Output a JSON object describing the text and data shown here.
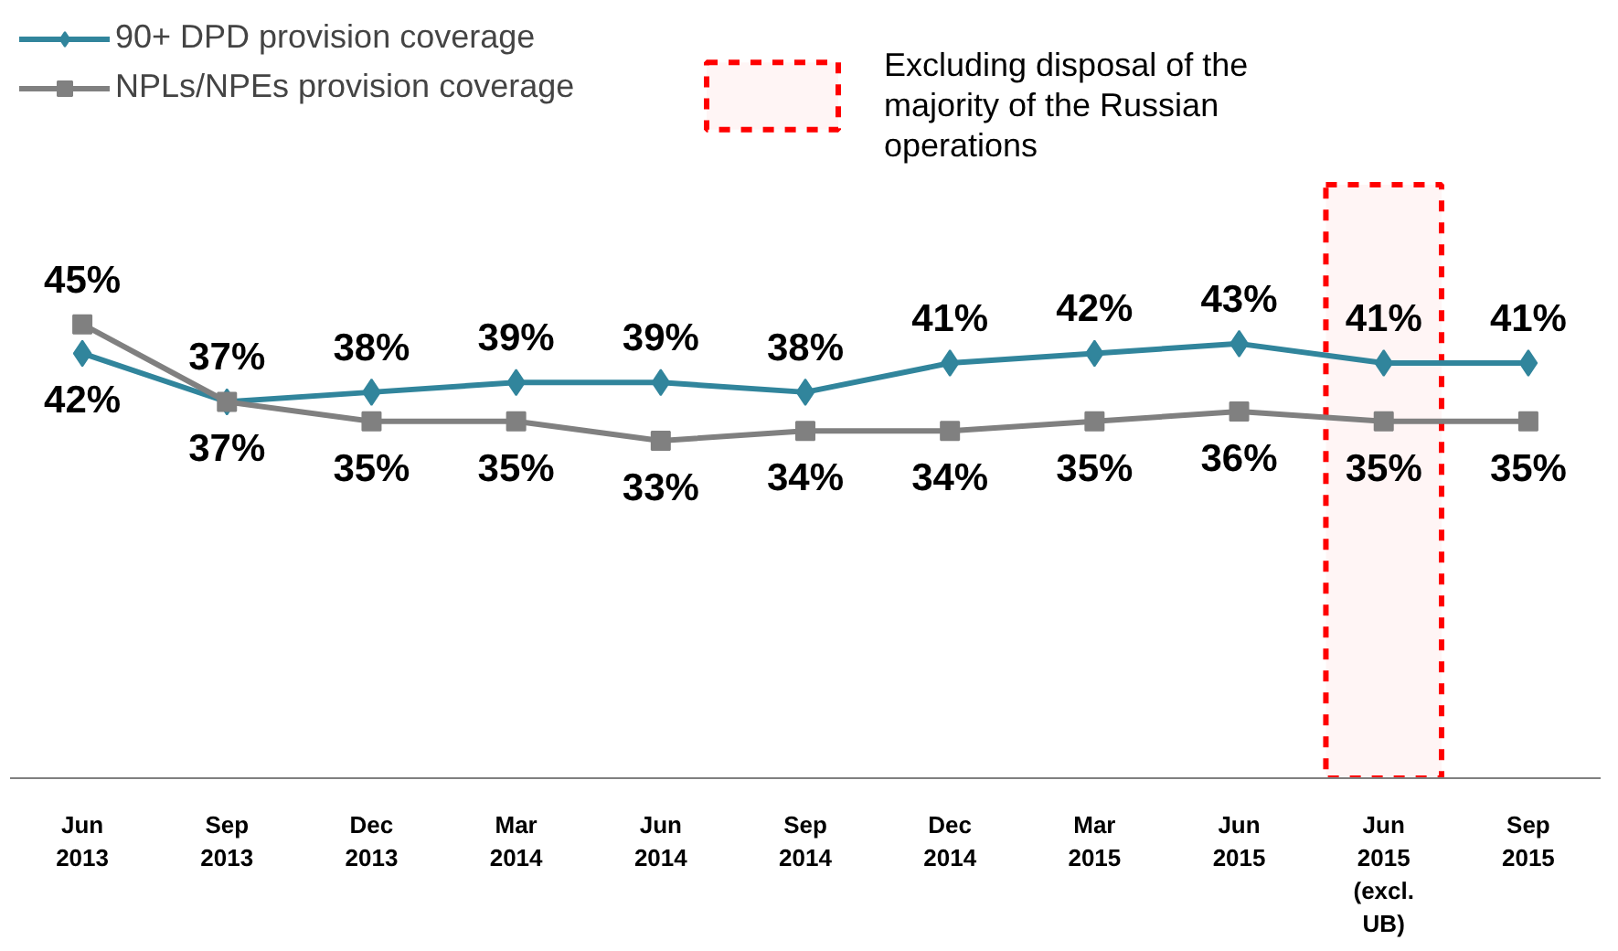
{
  "chart_data": {
    "type": "line",
    "categories": [
      "Jun 2013",
      "Sep 2013",
      "Dec 2013",
      "Mar 2014",
      "Jun 2014",
      "Sep 2014",
      "Dec 2014",
      "Mar 2015",
      "Jun 2015",
      "Jun 2015 (excl. UB)",
      "Sep 2015"
    ],
    "series": [
      {
        "name": "90+ DPD provision coverage",
        "color": "#31859c",
        "marker": "diamond",
        "values": [
          42,
          37,
          38,
          39,
          39,
          38,
          41,
          42,
          43,
          41,
          41
        ],
        "value_labels": [
          "42%",
          "37%",
          "38%",
          "39%",
          "39%",
          "38%",
          "41%",
          "42%",
          "43%",
          "41%",
          "41%"
        ]
      },
      {
        "name": "NPLs/NPEs provision coverage",
        "color": "#808080",
        "marker": "square",
        "values": [
          45,
          37,
          35,
          35,
          33,
          34,
          34,
          35,
          36,
          35,
          35
        ],
        "value_labels": [
          "45%",
          "37%",
          "35%",
          "35%",
          "33%",
          "34%",
          "34%",
          "35%",
          "36%",
          "35%",
          "35%"
        ]
      }
    ],
    "tick_labels": "x",
    "legend": "top left",
    "bands": [
      {
        "axis": "x",
        "from": "Jun 2015 (excl. UB)",
        "to": "Jun 2015 (excl. UB)",
        "label": "Excluding disposal of the majority of the Russian operations",
        "color": "#ff0000"
      }
    ]
  }
}
